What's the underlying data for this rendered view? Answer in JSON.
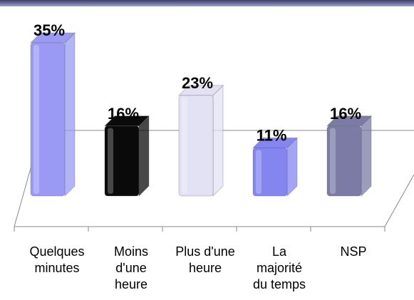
{
  "chart_data": {
    "type": "bar3d",
    "categories": [
      "Quelques minutes",
      "Moins d'une heure",
      "Plus d'une heure",
      "La majorité du temps",
      "NSP"
    ],
    "values": [
      35,
      16,
      23,
      11,
      16
    ],
    "value_labels": [
      "35%",
      "16%",
      "23%",
      "11%",
      "16%"
    ],
    "colors": [
      "#9a9af5",
      "#0a0a0a",
      "#e2e2f4",
      "#8585f0",
      "#7b7ba6"
    ]
  }
}
